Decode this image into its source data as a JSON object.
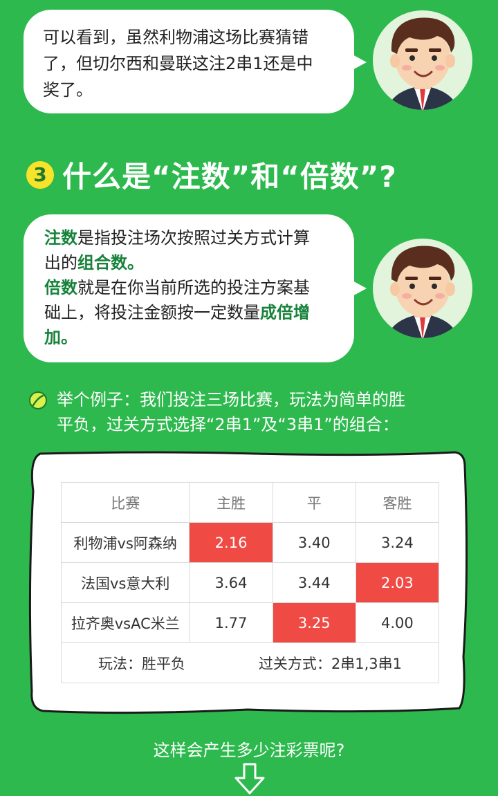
{
  "bubble1": {
    "lines": [
      "可以看到，虽然利物浦这场比赛猜错",
      "了，但切尔西和曼联这注2串1还是中",
      "奖了。"
    ]
  },
  "section": {
    "number": "3",
    "title": "什么是“注数”和“倍数”?"
  },
  "bubble2": {
    "line1": {
      "hl": "注数",
      "rest": "是指投注场次按照过关方式计算"
    },
    "line2": {
      "rest": "出的",
      "hl": "组合数。"
    },
    "line3": {
      "hl": "倍数",
      "rest": "就是在你当前所选的投注方案基"
    },
    "line4": {
      "rest": "础上，将投注金额按一定数量",
      "hl": "成倍增"
    },
    "line5": {
      "hl": "加。"
    }
  },
  "example": {
    "lines": [
      "举个例子：我们投注三场比赛，玩法为简单的胜",
      "平负，过关方式选择“2串1”及“3串1”的组合："
    ]
  },
  "table": {
    "headers": [
      "比赛",
      "主胜",
      "平",
      "客胜"
    ],
    "rows": [
      [
        "利物浦vs阿森纳",
        "2.16",
        "3.40",
        "3.24"
      ],
      [
        "法国vs意大利",
        "3.64",
        "3.44",
        "2.03"
      ],
      [
        "拉齐奥vsAC米兰",
        "1.77",
        "3.25",
        "4.00"
      ]
    ],
    "footer_left": "玩法：胜平负",
    "footer_right": "过关方式：2串1,3串1"
  },
  "question": "这样会产生多少注彩票呢?",
  "colors": {
    "background": "#2db94d",
    "highlight": "#f04a45",
    "accent": "#17823a"
  }
}
